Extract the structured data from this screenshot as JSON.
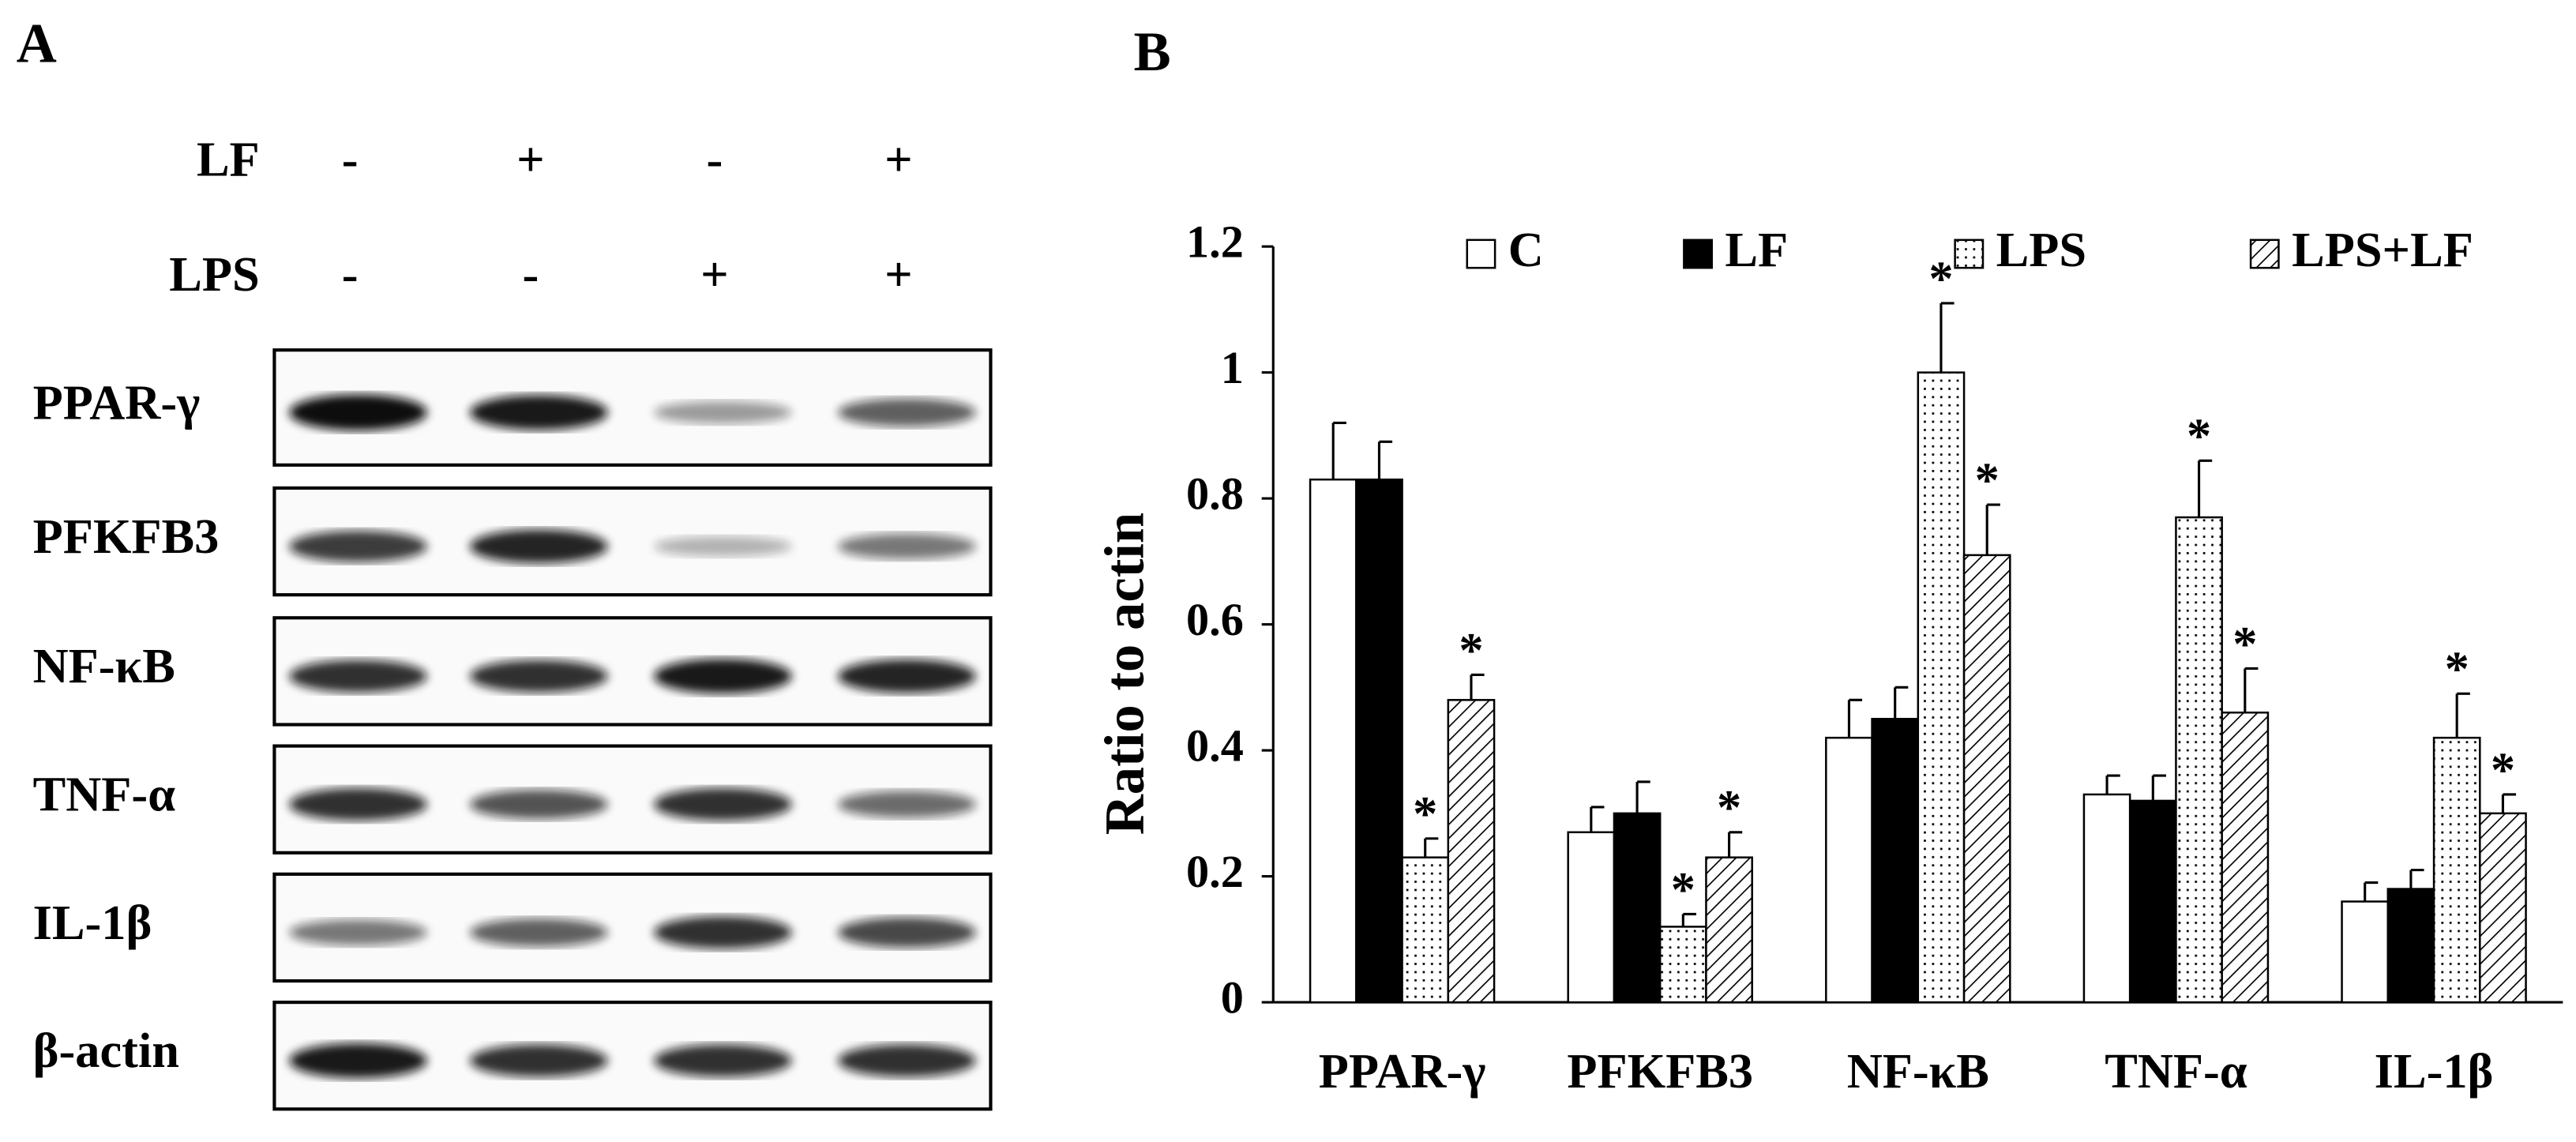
{
  "panel_a": {
    "label": "A",
    "treatments": [
      {
        "name": "LF",
        "levels": [
          "-",
          "+",
          "-",
          "+"
        ]
      },
      {
        "name": "LPS",
        "levels": [
          "-",
          "-",
          "+",
          "+"
        ]
      }
    ],
    "blots": [
      "PPAR-γ",
      "PFKFB3",
      "NF-κB",
      "TNF-α",
      "IL-1β",
      "β-actin"
    ]
  },
  "chart_data": {
    "type": "bar",
    "panel_label": "B",
    "ylabel": "Ratio to actin",
    "categories": [
      "PPAR-γ",
      "PFKFB3",
      "NF-κB",
      "TNF-α",
      "IL-1β"
    ],
    "series": [
      {
        "name": "C",
        "pattern": "open",
        "color": "#ffffff",
        "values": [
          0.83,
          0.27,
          0.42,
          0.33,
          0.16
        ],
        "errors": [
          0.09,
          0.04,
          0.06,
          0.03,
          0.03
        ]
      },
      {
        "name": "LF",
        "pattern": "solid",
        "color": "#000000",
        "values": [
          0.83,
          0.3,
          0.45,
          0.32,
          0.18
        ],
        "errors": [
          0.06,
          0.05,
          0.05,
          0.04,
          0.03
        ]
      },
      {
        "name": "LPS",
        "pattern": "dots",
        "color": "#ffffff",
        "values": [
          0.23,
          0.12,
          1.0,
          0.77,
          0.42
        ],
        "errors": [
          0.03,
          0.02,
          0.11,
          0.09,
          0.07
        ],
        "annotations": [
          "*",
          "*",
          "*",
          "*",
          "*"
        ]
      },
      {
        "name": "LPS+LF",
        "pattern": "hatch",
        "color": "#ffffff",
        "values": [
          0.48,
          0.23,
          0.71,
          0.46,
          0.3
        ],
        "errors": [
          0.04,
          0.04,
          0.08,
          0.07,
          0.03
        ],
        "annotations": [
          "*",
          "*",
          "*",
          "*",
          "*"
        ]
      }
    ],
    "ylim": [
      0,
      1.2
    ],
    "yticks": [
      0,
      0.2,
      0.4,
      0.6,
      0.8,
      1,
      1.2
    ],
    "grid": false,
    "legend": "top"
  }
}
